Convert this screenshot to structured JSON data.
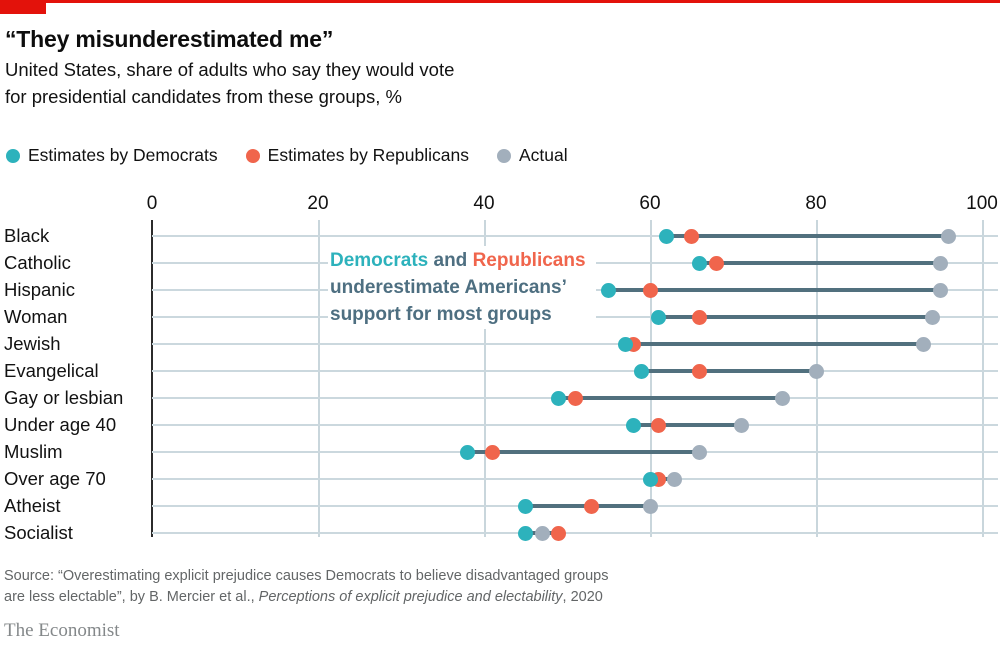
{
  "header": {
    "title": "“They misunderestimated me”",
    "subtitle_line1": "United States, share of adults who say they would vote",
    "subtitle_line2": "for presidential candidates from these groups, %"
  },
  "legend": [
    {
      "label": "Estimates by Democrats",
      "color": "#2DB2BC"
    },
    {
      "label": "Estimates by Republicans",
      "color": "#F0654C"
    },
    {
      "label": "Actual",
      "color": "#A2AFBC"
    }
  ],
  "annotation": {
    "democrats": "Democrats",
    "and": " and ",
    "republicans": "Republicans",
    "line2": "underestimate Americans’",
    "line3": "support for most groups"
  },
  "chart_data": {
    "type": "scatter",
    "subtype": "dumbbell-dot-plot",
    "title": "“They misunderestimated me”",
    "xlabel": "share of adults who say they would vote, %",
    "xlim": [
      0,
      100
    ],
    "x_ticks": [
      0,
      20,
      40,
      60,
      80,
      100
    ],
    "grid": "light vertical gridlines at ticks, light horizontal line per category, dark axis at 0",
    "legend_position": "top-left above plot",
    "categories": [
      "Black",
      "Catholic",
      "Hispanic",
      "Woman",
      "Jewish",
      "Evangelical",
      "Gay or lesbian",
      "Under age 40",
      "Muslim",
      "Over age 70",
      "Atheist",
      "Socialist"
    ],
    "series": [
      {
        "name": "Estimates by Democrats",
        "color": "#2DB2BC",
        "values": [
          62,
          66,
          55,
          61,
          57,
          59,
          49,
          58,
          38,
          60,
          45,
          45
        ]
      },
      {
        "name": "Estimates by Republicans",
        "color": "#F0654C",
        "values": [
          65,
          68,
          60,
          66,
          58,
          66,
          51,
          61,
          41,
          61,
          53,
          49
        ]
      },
      {
        "name": "Actual",
        "color": "#A2AFBC",
        "values": [
          96,
          95,
          95,
          94,
          93,
          80,
          76,
          71,
          66,
          63,
          60,
          47
        ]
      }
    ],
    "connector_color": "#51707E",
    "annotation_text": "Democrats and Republicans underestimate Americans’ support for most groups"
  },
  "source": {
    "line1": "Source: “Overestimating explicit prejudice causes Democrats to believe disadvantaged groups",
    "line2_prefix": "are less electable”, by B. Mercier et al., ",
    "line2_italic": "Perceptions of explicit prejudice and electability",
    "line2_suffix": ", 2020"
  },
  "footer": {
    "brand": "The Economist"
  },
  "accents": {
    "economist_red": "#E3120B"
  }
}
